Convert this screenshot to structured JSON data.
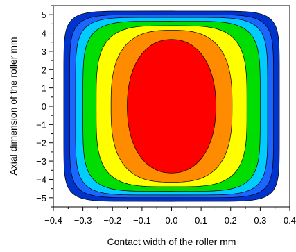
{
  "chart_data": {
    "type": "contour",
    "xlabel": "Contact width of the roller  mm",
    "ylabel": "Axial dimension of the roller  mm",
    "xlim": [
      -0.4,
      0.4
    ],
    "ylim": [
      -5.5,
      5.5
    ],
    "xticks": [
      "-0.4",
      "-0.3",
      "-0.2",
      "-0.1",
      "0.0",
      "0.1",
      "0.2",
      "0.3",
      "0.4"
    ],
    "yticks": [
      "5",
      "4",
      "3",
      "2",
      "1",
      "0",
      "-1",
      "-2",
      "-3",
      "-4",
      "-5"
    ],
    "x_minor_step": 0.05,
    "y_minor_step": 0.5,
    "grid": false,
    "levels": [
      {
        "color": "#0033cc",
        "half_width": 0.365,
        "half_height": 5.2,
        "exponent": 8
      },
      {
        "color": "#1a66ff",
        "half_width": 0.345,
        "half_height": 5.0,
        "exponent": 7
      },
      {
        "color": "#00ccff",
        "half_width": 0.325,
        "half_height": 4.85,
        "exponent": 6
      },
      {
        "color": "#00dd00",
        "half_width": 0.3,
        "half_height": 4.65,
        "exponent": 5
      },
      {
        "color": "#ffff00",
        "half_width": 0.255,
        "half_height": 4.4,
        "exponent": 3.8
      },
      {
        "color": "#ff8c00",
        "half_width": 0.205,
        "half_height": 4.15,
        "exponent": 2.8
      },
      {
        "color": "#ff0000",
        "half_width": 0.15,
        "half_height": 3.65,
        "exponent": 2.2
      }
    ]
  }
}
